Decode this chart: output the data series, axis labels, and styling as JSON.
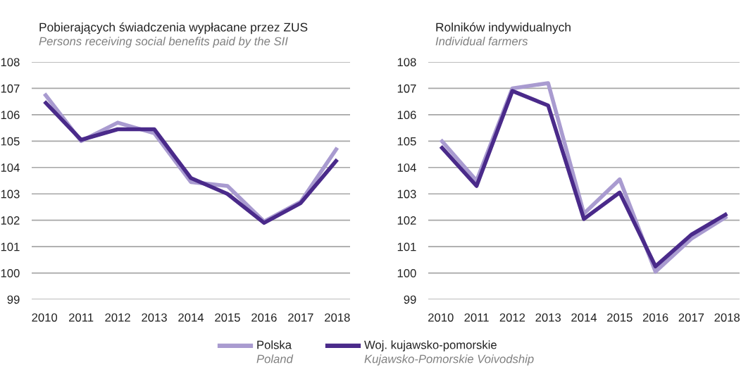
{
  "chart_data": [
    {
      "type": "line",
      "title": "Pobierających świadczenia wypłacane przez ZUS",
      "subtitle": "Persons receiving social benefits paid by the SII",
      "categories": [
        "2010",
        "2011",
        "2012",
        "2013",
        "2014",
        "2015",
        "2016",
        "2017",
        "2018"
      ],
      "series": [
        {
          "name": "Polska\nPoland",
          "color": "#a99bd0",
          "values": [
            106.8,
            105.0,
            105.7,
            105.3,
            103.45,
            103.3,
            101.95,
            102.7,
            104.75
          ]
        },
        {
          "name": "Woj. kujawsko-pomorskie\nKujawsko-Pomorskie Voivodship",
          "color": "#4a2a8a",
          "values": [
            106.5,
            105.05,
            105.45,
            105.45,
            103.6,
            103.0,
            101.9,
            102.65,
            104.3
          ]
        }
      ],
      "ylim": [
        99,
        108
      ],
      "yticks": [
        99,
        100,
        101,
        102,
        103,
        104,
        105,
        106,
        107,
        108
      ],
      "grid": "y",
      "legend": "bottom"
    },
    {
      "type": "line",
      "title": "Rolników indywidualnych",
      "subtitle": "Individual farmers",
      "categories": [
        "2010",
        "2011",
        "2012",
        "2013",
        "2014",
        "2015",
        "2016",
        "2017",
        "2018"
      ],
      "series": [
        {
          "color": "#a99bd0",
          "values": [
            105.05,
            103.5,
            107.0,
            107.2,
            102.25,
            103.55,
            100.05,
            101.3,
            102.15
          ]
        },
        {
          "color": "#4a2a8a",
          "values": [
            104.8,
            103.3,
            106.9,
            106.35,
            102.05,
            103.05,
            100.25,
            101.45,
            102.25
          ]
        }
      ],
      "ylim": [
        99,
        108
      ],
      "yticks": [
        99,
        100,
        101,
        102,
        103,
        104,
        105,
        106,
        107,
        108
      ],
      "grid": "y"
    }
  ]
}
